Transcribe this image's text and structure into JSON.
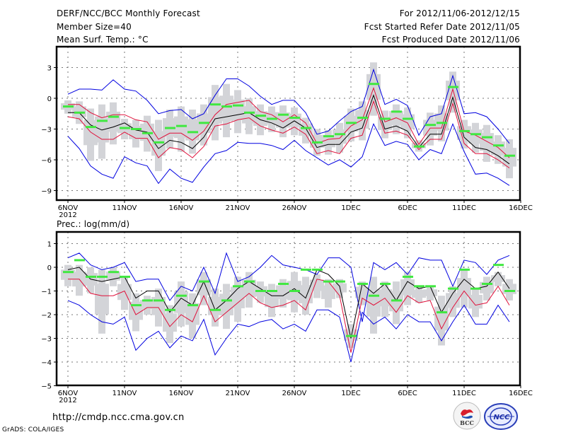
{
  "header": {
    "title": "DERF/NCC/BCC Monthly Forecast",
    "member_size": "Member Size=40",
    "period": "For 2012/11/06-2012/12/15",
    "started": "Fcst Started Refer Date 2012/11/05",
    "produced": "Fcst Produced Date 2012/11/06"
  },
  "footer": {
    "url": "http://cmdp.ncc.cma.gov.cn",
    "credit": "GrADS: COLA/IGES",
    "logo_left": "BCC",
    "logo_right": "NCC"
  },
  "colors": {
    "mean": "#000000",
    "spread": "#e0103a",
    "extreme": "#0000e0",
    "box": "#d3d4d8",
    "obs_marker": "#40e840"
  },
  "chart_data": [
    {
      "type": "line",
      "title": "Mean Surf. Temp.: °C",
      "xlabel": "",
      "ylabel": "",
      "x_start": "2012-11-06",
      "n_days": 40,
      "xticks": [
        "6NOV\n2012",
        "11NOV",
        "16NOV",
        "21NOV",
        "26NOV",
        "1DEC",
        "6DEC",
        "11DEC",
        "16DEC"
      ],
      "yticks": [
        3,
        0,
        -3,
        -6,
        -9
      ],
      "ylim": [
        -10.4,
        5.0
      ],
      "grid": true,
      "series": [
        {
          "name": "blue_upper",
          "values": [
            0.4,
            0.9,
            0.9,
            0.8,
            1.8,
            0.9,
            0.7,
            -0.2,
            -1.5,
            -1.2,
            -1.1,
            -2.0,
            -1.5,
            0.3,
            1.9,
            1.9,
            1.2,
            0.2,
            -0.6,
            -0.2,
            -0.2,
            -1.4,
            -3.5,
            -3.2,
            -2.2,
            -1.3,
            -0.8,
            2.8,
            -0.6,
            -0.1,
            -0.7,
            -3.6,
            -1.8,
            -1.5,
            2.2,
            -1.5,
            -1.4,
            -1.8,
            -3.0,
            -4.4
          ]
        },
        {
          "name": "red_upper",
          "values": [
            -0.6,
            -0.6,
            -1.4,
            -1.9,
            -1.6,
            -1.6,
            -2.1,
            -2.3,
            -4.0,
            -3.4,
            -3.4,
            -4.1,
            -3.2,
            -1.6,
            -0.6,
            -0.4,
            -0.2,
            -1.3,
            -1.6,
            -2.3,
            -1.6,
            -2.4,
            -4.4,
            -4.0,
            -3.9,
            -2.7,
            -2.1,
            1.0,
            -2.3,
            -1.9,
            -2.4,
            -4.5,
            -2.9,
            -2.9,
            0.9,
            -3.2,
            -3.6,
            -4.2,
            -4.8,
            -5.8
          ]
        },
        {
          "name": "mean",
          "values": [
            -1.4,
            -1.4,
            -2.6,
            -3.1,
            -2.8,
            -2.4,
            -3.1,
            -3.3,
            -4.9,
            -4.1,
            -4.3,
            -4.9,
            -3.8,
            -2.0,
            -1.8,
            -1.6,
            -1.4,
            -2.1,
            -2.4,
            -2.9,
            -2.2,
            -2.9,
            -4.8,
            -4.5,
            -4.5,
            -3.3,
            -2.9,
            0.3,
            -3.0,
            -2.7,
            -3.2,
            -4.8,
            -3.5,
            -3.5,
            0.1,
            -3.8,
            -4.8,
            -5.0,
            -5.6,
            -6.4
          ]
        },
        {
          "name": "red_lower",
          "values": [
            -1.8,
            -2.0,
            -3.3,
            -4.0,
            -4.0,
            -3.3,
            -3.9,
            -3.9,
            -5.8,
            -4.8,
            -5.0,
            -5.8,
            -4.7,
            -2.7,
            -2.5,
            -2.1,
            -1.9,
            -2.7,
            -3.1,
            -3.4,
            -2.8,
            -3.5,
            -5.4,
            -5.1,
            -5.4,
            -3.9,
            -3.6,
            -0.3,
            -3.4,
            -3.2,
            -3.6,
            -5.0,
            -4.0,
            -4.0,
            -0.5,
            -4.4,
            -5.4,
            -5.4,
            -6.0,
            -6.8
          ]
        },
        {
          "name": "blue_lower",
          "values": [
            -3.7,
            -4.9,
            -6.6,
            -7.4,
            -7.8,
            -5.7,
            -6.3,
            -6.6,
            -8.3,
            -6.9,
            -7.8,
            -8.2,
            -6.7,
            -5.4,
            -5.1,
            -4.3,
            -4.4,
            -4.4,
            -4.6,
            -5.0,
            -4.1,
            -5.1,
            -5.8,
            -6.5,
            -6.0,
            -6.7,
            -5.7,
            -2.5,
            -4.6,
            -4.2,
            -4.5,
            -6.0,
            -5.0,
            -5.4,
            -2.5,
            -5.2,
            -7.4,
            -7.3,
            -7.8,
            -8.5
          ]
        },
        {
          "name": "obs_marker",
          "values": [
            -0.8,
            -1.4,
            -2.8,
            -2.2,
            -1.8,
            -2.9,
            -3.0,
            -3.4,
            -4.3,
            -2.9,
            -2.7,
            -3.3,
            -2.4,
            -0.6,
            -0.8,
            -0.7,
            -1.4,
            -1.7,
            -2.0,
            -1.6,
            -1.9,
            -2.9,
            -4.3,
            -3.7,
            -3.5,
            -2.4,
            -1.9,
            1.4,
            -2.0,
            -1.3,
            -2.0,
            -4.7,
            -2.6,
            -2.4,
            1.1,
            -3.2,
            -3.5,
            -3.8,
            -4.6,
            -5.6
          ]
        },
        {
          "name": "box_outer_top",
          "values": [
            -0.2,
            -0.3,
            -1.0,
            -0.6,
            -0.4,
            -2.0,
            -2.1,
            -1.7,
            -2.1,
            -1.1,
            -0.8,
            -1.1,
            -0.6,
            1.3,
            1.4,
            0.8,
            0.0,
            -0.6,
            -0.8,
            -0.7,
            -0.9,
            -1.9,
            -3.0,
            -3.1,
            -2.4,
            -1.0,
            -0.3,
            3.5,
            -1.2,
            -0.6,
            -0.9,
            -4.1,
            -1.4,
            -0.7,
            2.6,
            -2.1,
            -2.4,
            -2.6,
            -3.6,
            -4.0
          ]
        },
        {
          "name": "box_outer_bottom",
          "values": [
            -1.5,
            -2.5,
            -6.1,
            -5.9,
            -4.5,
            -4.0,
            -4.8,
            -5.2,
            -7.1,
            -4.9,
            -5.2,
            -5.4,
            -4.6,
            -4.1,
            -3.8,
            -3.4,
            -3.5,
            -3.6,
            -3.3,
            -3.8,
            -3.6,
            -4.4,
            -5.6,
            -5.5,
            -5.3,
            -4.2,
            -4.1,
            -1.7,
            -3.9,
            -3.5,
            -3.9,
            -5.2,
            -4.6,
            -4.2,
            -1.4,
            -4.9,
            -5.3,
            -6.2,
            -6.4,
            -7.8
          ]
        }
      ]
    },
    {
      "type": "line",
      "title": "Prec.: log(mm/d)",
      "xlabel": "",
      "ylabel": "",
      "x_start": "2012-11-06",
      "n_days": 40,
      "xticks": [
        "6NOV\n2012",
        "11NOV",
        "16NOV",
        "21NOV",
        "26NOV",
        "1DEC",
        "6DEC",
        "11DEC",
        "16DEC"
      ],
      "yticks": [
        1,
        0,
        -1,
        -2,
        -3,
        -4,
        -5
      ],
      "ylim": [
        -5,
        1.5
      ],
      "grid": true,
      "series": [
        {
          "name": "blue_upper",
          "values": [
            0.4,
            0.6,
            0.1,
            -0.1,
            0.0,
            0.2,
            -0.6,
            -0.5,
            -0.5,
            -1.4,
            -0.8,
            -1.0,
            0.0,
            -1.1,
            0.6,
            -0.6,
            -0.4,
            0.0,
            0.5,
            0.1,
            0.0,
            -0.1,
            -0.3,
            0.4,
            0.4,
            0.0,
            -2.3,
            0.2,
            -0.1,
            0.2,
            -0.3,
            0.4,
            0.3,
            0.3,
            -0.8,
            0.3,
            0.2,
            -0.3,
            0.3,
            0.5
          ]
        },
        {
          "name": "mean",
          "values": [
            -0.1,
            0.0,
            -0.5,
            -0.6,
            -0.5,
            -0.4,
            -1.3,
            -1.0,
            -1.0,
            -1.9,
            -1.3,
            -1.6,
            -0.6,
            -1.8,
            -1.4,
            -0.9,
            -0.6,
            -0.9,
            -1.2,
            -1.2,
            -0.9,
            -1.3,
            -0.1,
            -0.3,
            -0.8,
            -3.0,
            -0.7,
            -1.1,
            -0.7,
            -1.4,
            -0.6,
            -0.9,
            -0.8,
            -1.9,
            -1.1,
            -0.5,
            -0.9,
            -0.8,
            -0.2,
            -0.9
          ]
        },
        {
          "name": "red_lower",
          "values": [
            -0.5,
            -0.5,
            -1.1,
            -1.2,
            -1.2,
            -1.0,
            -2.0,
            -1.7,
            -1.7,
            -2.5,
            -2.0,
            -2.3,
            -1.2,
            -2.3,
            -1.9,
            -1.5,
            -1.1,
            -1.5,
            -1.7,
            -1.6,
            -1.4,
            -1.8,
            -0.5,
            -0.6,
            -1.2,
            -3.6,
            -1.3,
            -1.6,
            -1.3,
            -1.9,
            -1.2,
            -1.5,
            -1.4,
            -2.6,
            -1.7,
            -1.0,
            -1.6,
            -1.5,
            -0.8,
            -1.6
          ]
        },
        {
          "name": "blue_lower",
          "values": [
            -1.4,
            -1.6,
            -2.0,
            -2.3,
            -2.4,
            -2.1,
            -3.5,
            -3.0,
            -2.7,
            -3.4,
            -2.9,
            -3.1,
            -2.2,
            -3.7,
            -3.0,
            -2.4,
            -2.5,
            -2.3,
            -2.2,
            -2.6,
            -2.4,
            -2.7,
            -1.8,
            -1.8,
            -2.1,
            -4.0,
            -1.9,
            -2.4,
            -2.1,
            -2.6,
            -2.0,
            -2.3,
            -2.3,
            -3.1,
            -2.3,
            -1.6,
            -2.4,
            -2.4,
            -1.6,
            -2.3
          ]
        },
        {
          "name": "obs_marker",
          "values": [
            -0.2,
            0.3,
            -0.4,
            -0.4,
            -0.2,
            -0.4,
            -1.6,
            -1.4,
            -1.4,
            -1.8,
            -1.2,
            -1.6,
            -0.6,
            -1.8,
            -1.4,
            -0.8,
            -0.6,
            -1.0,
            -1.0,
            -0.7,
            -1.0,
            -0.1,
            -0.1,
            -0.6,
            -0.6,
            -2.9,
            -0.7,
            -1.2,
            -0.7,
            -1.4,
            -0.4,
            -0.8,
            -0.8,
            -1.9,
            -0.9,
            -0.1,
            -0.9,
            -0.7,
            0.1,
            -1.0
          ]
        },
        {
          "name": "box_outer_top",
          "values": [
            0.1,
            0.1,
            0.0,
            -0.1,
            0.0,
            -0.4,
            -1.1,
            -1.2,
            -0.9,
            -1.6,
            -0.6,
            -1.1,
            -0.2,
            -0.9,
            -0.7,
            -0.4,
            -0.2,
            -0.6,
            -0.7,
            -0.5,
            -0.2,
            -0.4,
            -0.3,
            -0.5,
            -0.5,
            -2.4,
            -0.6,
            -0.4,
            -0.6,
            -0.6,
            -0.2,
            -0.8,
            -0.8,
            -1.2,
            -0.8,
            -0.1,
            -0.9,
            -0.4,
            -0.2,
            -0.5
          ]
        },
        {
          "name": "box_outer_bottom",
          "values": [
            -0.8,
            -1.2,
            -1.1,
            -2.8,
            -0.8,
            -1.8,
            -2.7,
            -2.0,
            -2.5,
            -3.2,
            -2.5,
            -3.0,
            -1.6,
            -2.5,
            -2.6,
            -2.3,
            -1.7,
            -1.5,
            -2.1,
            -1.7,
            -1.9,
            -2.0,
            -1.3,
            -1.7,
            -1.3,
            -3.4,
            -1.6,
            -2.8,
            -2.1,
            -2.4,
            -1.6,
            -1.5,
            -1.4,
            -3.3,
            -2.1,
            -1.7,
            -2.1,
            -1.4,
            -0.8,
            -1.4
          ]
        }
      ]
    }
  ]
}
